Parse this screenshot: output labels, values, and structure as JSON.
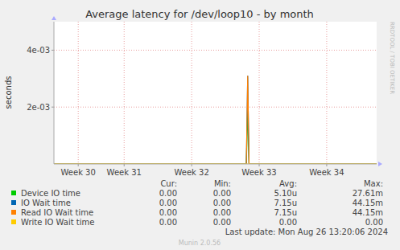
{
  "chart_data": {
    "type": "line",
    "title": "Average latency for /dev/loop10 - by month",
    "y_label": "seconds",
    "x": [
      29.96,
      32.8,
      32.81,
      32.83,
      32.85,
      32.86,
      34.74
    ],
    "xlim": [
      29.96,
      34.74
    ],
    "xticks": [
      {
        "value": 30.32,
        "label": "Week 30"
      },
      {
        "value": 31,
        "label": "Week 31"
      },
      {
        "value": 32,
        "label": "Week 32"
      },
      {
        "value": 33,
        "label": "Week 33"
      },
      {
        "value": 34,
        "label": "Week 34"
      }
    ],
    "ylim": [
      0,
      0.005
    ],
    "yticks": [
      {
        "value": 0.002,
        "label": "2e-03"
      },
      {
        "value": 0.004,
        "label": "4e-03"
      }
    ],
    "grid": true,
    "legend": "bottom",
    "legend_columns": [
      "Cur:",
      "Min:",
      "Avg:",
      "Max:"
    ],
    "series": [
      {
        "name": "Device IO time",
        "color": "#00cc00",
        "values": [
          0,
          0,
          0,
          0.0019,
          0,
          0,
          0
        ],
        "stats": [
          "0.00",
          "0.00",
          "5.10u",
          "27.61m"
        ]
      },
      {
        "name": "IO Wait time",
        "color": "#0066b3",
        "values": [
          0,
          0,
          0,
          0.0031,
          0,
          0,
          0
        ],
        "stats": [
          "0.00",
          "0.00",
          "7.15u",
          "44.15m"
        ]
      },
      {
        "name": "Read IO Wait time",
        "color": "#ff8000",
        "values": [
          0,
          0,
          0,
          0.0031,
          0,
          0,
          0
        ],
        "stats": [
          "0.00",
          "0.00",
          "7.15u",
          "44.15m"
        ]
      },
      {
        "name": "Write IO Wait time",
        "color": "#ffcc00",
        "values": [
          0,
          0,
          0,
          0,
          0,
          0,
          0
        ],
        "stats": [
          "0.00",
          "0.00",
          "0.00",
          "0.00"
        ]
      }
    ],
    "footer": "Last update: Mon Aug 26 13:20:06 2024",
    "credit": "Munin 2.0.56",
    "watermark": "RRDTOOL / TOBI OETIKER"
  }
}
